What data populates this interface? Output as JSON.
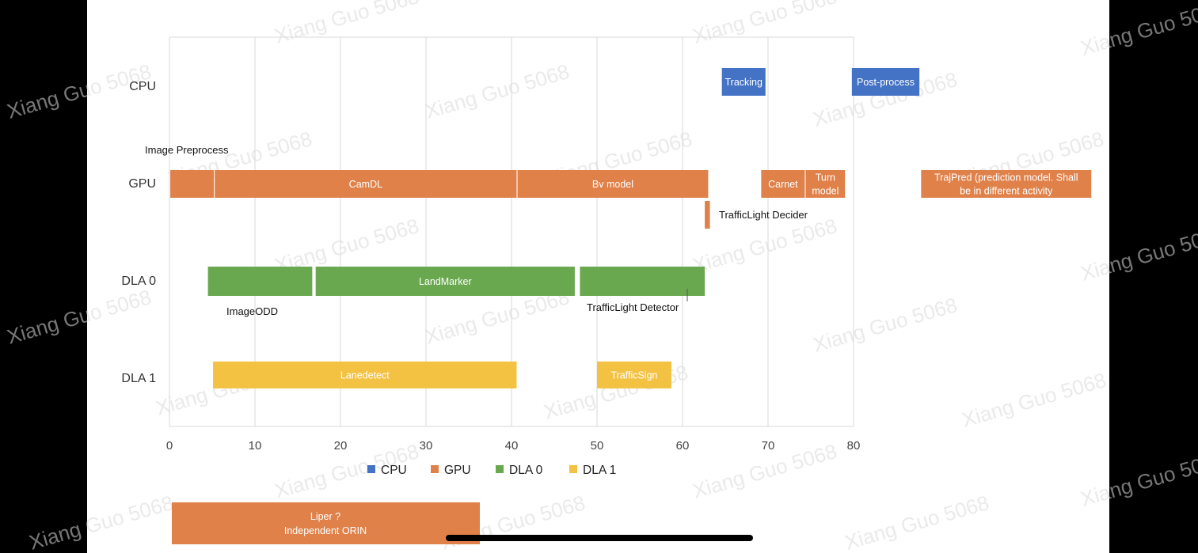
{
  "colors": {
    "cpu": "#4472C4",
    "gpu": "#E0814A",
    "dla0": "#6AA84F",
    "dla1": "#F3C242",
    "grid": "#d9d9d9",
    "page": "#ffffff",
    "frame": "#000000",
    "home_indicator": "#000000"
  },
  "chart_data": {
    "type": "gantt",
    "xlim": [
      0,
      80
    ],
    "xticks": [
      0,
      10,
      20,
      30,
      40,
      50,
      60,
      70,
      80
    ],
    "grid": true,
    "legend_position": "bottom",
    "lanes": [
      {
        "key": "cpu",
        "label": "CPU"
      },
      {
        "key": "gpu",
        "label": "GPU"
      },
      {
        "key": "dla0",
        "label": "DLA 0"
      },
      {
        "key": "dla1",
        "label": "DLA 1"
      }
    ],
    "legend": [
      {
        "key": "cpu",
        "label": "CPU"
      },
      {
        "key": "gpu",
        "label": "GPU"
      },
      {
        "key": "dla0",
        "label": "DLA 0"
      },
      {
        "key": "dla1",
        "label": "DLA 1"
      }
    ],
    "tasks": [
      {
        "name": "tracking",
        "lane": "cpu",
        "start": 64.6,
        "end": 69.7,
        "label": [
          "Tracking"
        ]
      },
      {
        "name": "post-process",
        "lane": "cpu",
        "start": 79.8,
        "end": 87.7,
        "label": [
          "Post-process"
        ]
      },
      {
        "name": "image-preprocess",
        "lane": "gpu",
        "start": 0.1,
        "end": 5.2,
        "label": []
      },
      {
        "name": "camdl",
        "lane": "gpu",
        "start": 5.3,
        "end": 40.6,
        "label": [
          "CamDL"
        ]
      },
      {
        "name": "bv-model",
        "lane": "gpu",
        "start": 40.7,
        "end": 63.0,
        "label": [
          "Bv model"
        ]
      },
      {
        "name": "carnet",
        "lane": "gpu",
        "start": 69.2,
        "end": 74.3,
        "label": [
          "Carnet"
        ]
      },
      {
        "name": "turn-model",
        "lane": "gpu",
        "start": 74.4,
        "end": 79.0,
        "label": [
          "Turn",
          "model"
        ]
      },
      {
        "name": "trajpred",
        "lane": "gpu",
        "start": 87.9,
        "end": 107.8,
        "label": [
          "TrajPred (prediction model. Shall",
          "be in different activity"
        ]
      },
      {
        "name": "trafficlight-decider",
        "lane": "gpu_low",
        "start": 62.6,
        "end": 63.2,
        "label": []
      },
      {
        "name": "imageodd",
        "lane": "dla0",
        "start": 4.5,
        "end": 16.7,
        "label": []
      },
      {
        "name": "landmarker",
        "lane": "dla0",
        "start": 17.1,
        "end": 47.4,
        "label": [
          "LandMarker"
        ]
      },
      {
        "name": "trafficlight-detector",
        "lane": "dla0",
        "start": 48.0,
        "end": 62.6,
        "label": []
      },
      {
        "name": "lanedetect",
        "lane": "dla1",
        "start": 5.1,
        "end": 40.6,
        "label": [
          "Lanedetect"
        ]
      },
      {
        "name": "trafficsign",
        "lane": "dla1",
        "start": 50.0,
        "end": 58.7,
        "label": [
          "TrafficSign"
        ]
      }
    ],
    "annotations": [
      {
        "name": "image-preprocess-note",
        "text": "Image Preprocess"
      },
      {
        "name": "trafficlight-decider-note",
        "text": "TrafficLight Decider"
      },
      {
        "name": "imageodd-note",
        "text": "ImageODD"
      },
      {
        "name": "trafficlight-detector-note",
        "text": "TrafficLight Detector"
      }
    ]
  },
  "liper_box": {
    "lines": [
      "Liper ?",
      "Independent ORIN"
    ]
  },
  "watermark": "Xiang Guo 5068"
}
